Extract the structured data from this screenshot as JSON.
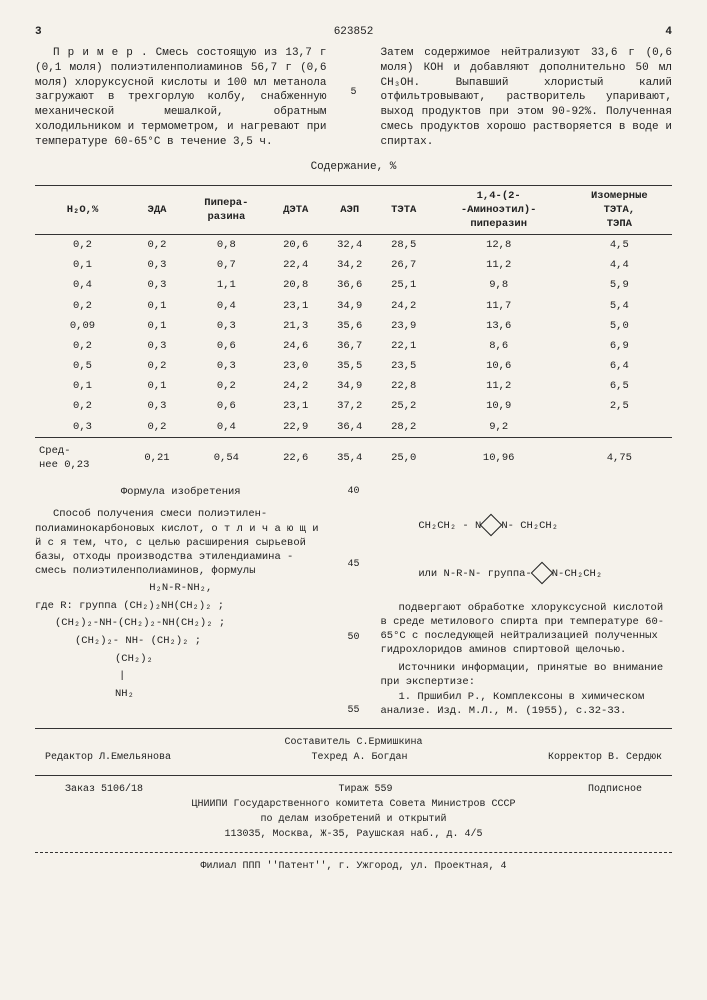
{
  "header": {
    "left_page": "3",
    "patent_no": "623852",
    "right_page": "4"
  },
  "left_para": "П р и м е р . Смесь состоящую из 13,7 г (0,1 моля) полиэтиленполиаминов 56,7 г (0,6 моля) хлоруксусной кислоты и 100 мл метанола загружают в трехгорлую колбу, снабженную механической мешалкой, обратным холодильником и термометром, и нагревают при температуре 60-65°С в течение 3,5 ч.",
  "right_para": "Затем содержимое нейтрализуют 33,6 г (0,6 моля) КОН и добавляют дополнительно 50 мл СН₃ОН. Выпавший хлористый калий отфильтровывают, растворитель упаривают, выход продуктов при этом 90-92%. Полученная смесь продуктов хорошо растворяется в воде и спиртах.",
  "col_marker": "5",
  "table": {
    "caption": "Содержание, %",
    "headers": [
      "Н₂О,%",
      "ЭДА",
      "Пипера-\nразина",
      "ДЭТА",
      "АЭП",
      "ТЭТА",
      "1,4-(2-\n-Аминоэтил)-\nпиперазин",
      "Изомерные\nТЭТА,\nТЭПА"
    ],
    "rows": [
      [
        "0,2",
        "0,2",
        "0,8",
        "20,6",
        "32,4",
        "28,5",
        "12,8",
        "4,5"
      ],
      [
        "0,1",
        "0,3",
        "0,7",
        "22,4",
        "34,2",
        "26,7",
        "11,2",
        "4,4"
      ],
      [
        "0,4",
        "0,3",
        "1,1",
        "20,8",
        "36,6",
        "25,1",
        "9,8",
        "5,9"
      ],
      [
        "0,2",
        "0,1",
        "0,4",
        "23,1",
        "34,9",
        "24,2",
        "11,7",
        "5,4"
      ],
      [
        "0,09",
        "0,1",
        "0,3",
        "21,3",
        "35,6",
        "23,9",
        "13,6",
        "5,0"
      ],
      [
        "0,2",
        "0,3",
        "0,6",
        "24,6",
        "36,7",
        "22,1",
        "8,6",
        "6,9"
      ],
      [
        "0,5",
        "0,2",
        "0,3",
        "23,0",
        "35,5",
        "23,5",
        "10,6",
        "6,4"
      ],
      [
        "0,1",
        "0,1",
        "0,2",
        "24,2",
        "34,9",
        "22,8",
        "11,2",
        "6,5"
      ],
      [
        "0,2",
        "0,3",
        "0,6",
        "23,1",
        "37,2",
        "25,2",
        "10,9",
        "2,5"
      ],
      [
        "0,3",
        "0,2",
        "0,4",
        "22,9",
        "36,4",
        "28,2",
        "9,2",
        ""
      ]
    ],
    "avg_label": "Сред-\nнее",
    "avg": [
      "0,23",
      "0,21",
      "0,54",
      "22,6",
      "35,4",
      "25,0",
      "10,96",
      "4,75"
    ]
  },
  "formula": {
    "heading": "Формула изобретения",
    "left_text1": "Способ получения смеси полиэтилен-полиаминокарбоновых кислот, о т л и ч а ю щ и й с я тем, что, с целью расширения сырьевой базы, отходы производства этилендиамина - смесь полиэтиленполиаминов, формулы",
    "chem_main": "H₂N-R-NH₂,",
    "chem_where": "где R: группа (CH₂)₂NH(CH₂)₂ ;",
    "chem_l2": "(CH₂)₂-NH-(CH₂)₂-NH(CH₂)₂ ;",
    "chem_l3": "(CH₂)₂- NH- (CH₂)₂ ;",
    "chem_l4": "(CH₂)₂",
    "chem_l5": "NH₂",
    "right_chem1_pre": "CH₂CH₂ - N",
    "right_chem1_post": "N- CH₂CH₂",
    "right_chem2_pre": "или N-R-N- группа-",
    "right_chem2_post": "N-CH₂CH₂",
    "right_text": "подвергают обработке хлоруксусной кислотой в среде метилового спирта при температуре 60-65°С с последующей нейтрализацией полученных гидрохлоридов аминов спиртовой щелочью.",
    "sources_heading": "Источники информации, принятые во внимание при экспертизе:",
    "source1": "1. Пршибил Р., Комплексоны в химическом анализе.     Изд. М.Л., М. (1955), с.32-33."
  },
  "markers": {
    "m40": "40",
    "m45": "45",
    "m50": "50",
    "m55": "55"
  },
  "credits": {
    "compiler": "Составитель С.Ермишкина",
    "editor": "Редактор Л.Емельянова",
    "tech": "Техред А. Богдан",
    "corrector": "Корректор В. Сердюк"
  },
  "footer": {
    "order": "Заказ 5106/18",
    "tirage": "Тираж 559",
    "sub": "Подписное",
    "org1": "ЦНИИПИ Государственного комитета Совета Министров СССР",
    "org2": "по делам изобретений и открытий",
    "addr1": "113035, Москва, Ж-35, Раушская наб., д. 4/5",
    "branch": "Филиал ППП ''Патент'', г. Ужгород, ул. Проектная, 4"
  }
}
